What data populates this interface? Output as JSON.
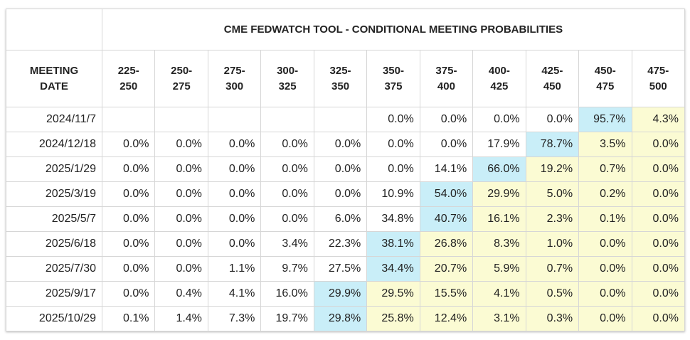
{
  "table": {
    "title": "CME FEDWATCH TOOL - CONDITIONAL MEETING PROBABILITIES",
    "row_header": [
      "MEETING",
      "DATE"
    ],
    "columns": [
      [
        "225-",
        "250"
      ],
      [
        "250-",
        "275"
      ],
      [
        "275-",
        "300"
      ],
      [
        "300-",
        "325"
      ],
      [
        "325-",
        "350"
      ],
      [
        "350-",
        "375"
      ],
      [
        "375-",
        "400"
      ],
      [
        "400-",
        "425"
      ],
      [
        "425-",
        "450"
      ],
      [
        "450-",
        "475"
      ],
      [
        "475-",
        "500"
      ]
    ],
    "highlight_color": "#c9eef8",
    "after_color": "#fbfbd3",
    "rows": [
      {
        "date": "2024/11/7",
        "cells": [
          null,
          null,
          null,
          null,
          null,
          "0.0%",
          "0.0%",
          "0.0%",
          "0.0%",
          "95.7%",
          "4.3%"
        ]
      },
      {
        "date": "2024/12/18",
        "cells": [
          "0.0%",
          "0.0%",
          "0.0%",
          "0.0%",
          "0.0%",
          "0.0%",
          "0.0%",
          "17.9%",
          "78.7%",
          "3.5%",
          "0.0%"
        ]
      },
      {
        "date": "2025/1/29",
        "cells": [
          "0.0%",
          "0.0%",
          "0.0%",
          "0.0%",
          "0.0%",
          "0.0%",
          "14.1%",
          "66.0%",
          "19.2%",
          "0.7%",
          "0.0%"
        ]
      },
      {
        "date": "2025/3/19",
        "cells": [
          "0.0%",
          "0.0%",
          "0.0%",
          "0.0%",
          "0.0%",
          "10.9%",
          "54.0%",
          "29.9%",
          "5.0%",
          "0.2%",
          "0.0%"
        ]
      },
      {
        "date": "2025/5/7",
        "cells": [
          "0.0%",
          "0.0%",
          "0.0%",
          "0.0%",
          "6.0%",
          "34.8%",
          "40.7%",
          "16.1%",
          "2.3%",
          "0.1%",
          "0.0%"
        ]
      },
      {
        "date": "2025/6/18",
        "cells": [
          "0.0%",
          "0.0%",
          "0.0%",
          "3.4%",
          "22.3%",
          "38.1%",
          "26.8%",
          "8.3%",
          "1.0%",
          "0.0%",
          "0.0%"
        ]
      },
      {
        "date": "2025/7/30",
        "cells": [
          "0.0%",
          "0.0%",
          "1.1%",
          "9.7%",
          "27.5%",
          "34.4%",
          "20.7%",
          "5.9%",
          "0.7%",
          "0.0%",
          "0.0%"
        ]
      },
      {
        "date": "2025/9/17",
        "cells": [
          "0.0%",
          "0.4%",
          "4.1%",
          "16.0%",
          "29.9%",
          "29.5%",
          "15.5%",
          "4.1%",
          "0.5%",
          "0.0%",
          "0.0%"
        ]
      },
      {
        "date": "2025/10/29",
        "cells": [
          "0.1%",
          "1.4%",
          "7.3%",
          "19.7%",
          "29.8%",
          "25.8%",
          "12.4%",
          "3.1%",
          "0.3%",
          "0.0%",
          "0.0%"
        ]
      }
    ]
  }
}
